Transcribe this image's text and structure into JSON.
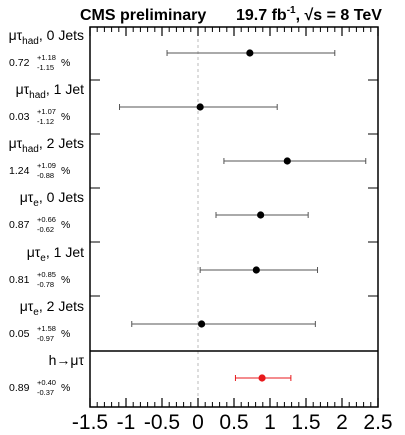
{
  "header": {
    "left": "CMS preliminary",
    "lumi_value": "19.7 fb",
    "lumi_exp": "-1",
    "energy_sep": ", ",
    "sqrt_glyph": "√",
    "energy": "s = 8 TeV"
  },
  "chart_data": {
    "type": "scatter",
    "title": "",
    "xlabel": "",
    "ylabel": "",
    "xlim": [
      -1.5,
      2.5
    ],
    "x_ticks": [
      "-1.5",
      "-1",
      "-0.5",
      "0",
      "0.5",
      "1",
      "1.5",
      "2",
      "2.5"
    ],
    "x_tick_values": [
      -1.5,
      -1,
      -0.5,
      0,
      0.5,
      1,
      1.5,
      2,
      2.5
    ],
    "reference_line": 0,
    "unit": "%",
    "categories": [
      {
        "base": "μτ",
        "sub": "had",
        "jets": ", 0 Jets",
        "value": 0.72,
        "value_text": "0.72",
        "err_up": 1.18,
        "err_up_text": "+1.18",
        "err_down": 1.15,
        "err_down_text": "-1.15",
        "color": "#000000"
      },
      {
        "base": "μτ",
        "sub": "had",
        "jets": ", 1 Jet",
        "value": 0.03,
        "value_text": "0.03",
        "err_up": 1.07,
        "err_up_text": "+1.07",
        "err_down": 1.12,
        "err_down_text": "-1.12",
        "color": "#000000"
      },
      {
        "base": "μτ",
        "sub": "had",
        "jets": ", 2 Jets",
        "value": 1.24,
        "value_text": "1.24",
        "err_up": 1.09,
        "err_up_text": "+1.09",
        "err_down": 0.88,
        "err_down_text": "-0.88",
        "color": "#000000"
      },
      {
        "base": "μτ",
        "sub": "e",
        "jets": ", 0 Jets",
        "value": 0.87,
        "value_text": "0.87",
        "err_up": 0.66,
        "err_up_text": "+0.66",
        "err_down": 0.62,
        "err_down_text": "-0.62",
        "color": "#000000"
      },
      {
        "base": "μτ",
        "sub": "e",
        "jets": ", 1 Jet",
        "value": 0.81,
        "value_text": "0.81",
        "err_up": 0.85,
        "err_up_text": "+0.85",
        "err_down": 0.78,
        "err_down_text": "-0.78",
        "color": "#000000"
      },
      {
        "base": "μτ",
        "sub": "e",
        "jets": ", 2 Jets",
        "value": 0.05,
        "value_text": "0.05",
        "err_up": 1.58,
        "err_up_text": "+1.58",
        "err_down": 0.97,
        "err_down_text": "-0.97",
        "color": "#000000"
      }
    ],
    "combined": {
      "base": "h→μτ",
      "sub": "",
      "jets": "",
      "value": 0.89,
      "value_text": "0.89",
      "err_up": 0.4,
      "err_up_text": "+0.40",
      "err_down": 0.37,
      "err_down_text": "-0.37",
      "color": "#e8191c"
    },
    "grid": false,
    "legend": "none"
  }
}
